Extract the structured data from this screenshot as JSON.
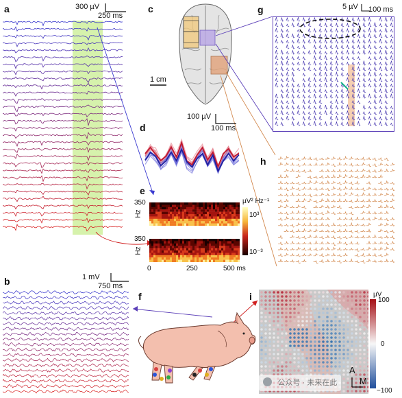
{
  "panels": {
    "a": {
      "label": "a",
      "scale_v": "300 µV",
      "scale_t": "250 ms"
    },
    "b": {
      "label": "b",
      "scale_v": "1 mV",
      "scale_t": "750 ms"
    },
    "c": {
      "label": "c",
      "scale": "1 cm"
    },
    "d": {
      "label": "d",
      "scale_v": "100 µV",
      "scale_t": "100 ms"
    },
    "e": {
      "label": "e",
      "ytick_top": "350",
      "ytick_bottom": "0",
      "ylabel": "Hz",
      "xticks": [
        "0",
        "250",
        "500 ms"
      ],
      "cbar_label": "µV² Hz⁻¹",
      "cbar_top": "10³",
      "cbar_bottom": "10⁻³"
    },
    "f": {
      "label": "f"
    },
    "g": {
      "label": "g",
      "scale_v": "5 µV",
      "scale_t": "100 ms"
    },
    "h": {
      "label": "h"
    },
    "i": {
      "label": "i",
      "cbar_label": "µV",
      "cbar_top": "100",
      "cbar_mid": "0",
      "cbar_bottom": "−100",
      "orient": "A",
      "corner": "M"
    }
  },
  "watermark": "公众号 · 未来在此",
  "colors": {
    "blue": "#3a3ad0",
    "red": "#d02020",
    "purple": "#5b3fb8",
    "orange": "#d38a50",
    "green": "#c8ee90"
  }
}
